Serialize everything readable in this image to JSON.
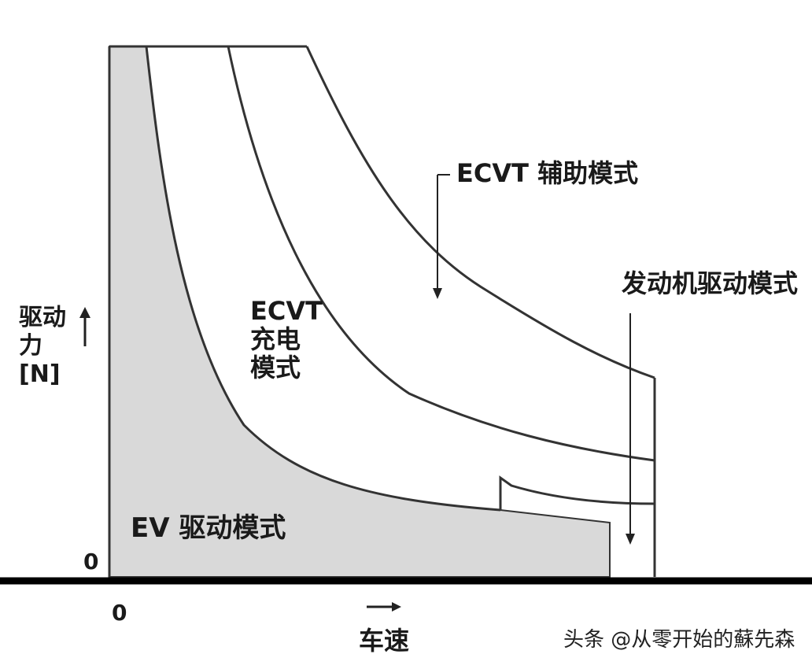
{
  "diagram": {
    "y_axis": {
      "label_lines": [
        "驱动",
        "力",
        "[N]"
      ],
      "zero_label": "0"
    },
    "x_axis": {
      "label": "车速",
      "zero_label": "0"
    },
    "regions": {
      "ev": "EV 驱动模式",
      "ecvt_charge_lines": [
        "ECVT",
        "充电",
        "模式"
      ],
      "ecvt_assist": "ECVT 辅助模式",
      "engine": "发动机驱动模式"
    },
    "colors": {
      "ev_fill": "#d9d9d9",
      "line": "#333333",
      "axis": "#000000"
    }
  },
  "watermark": "头条 @从零开始的蘇先森"
}
